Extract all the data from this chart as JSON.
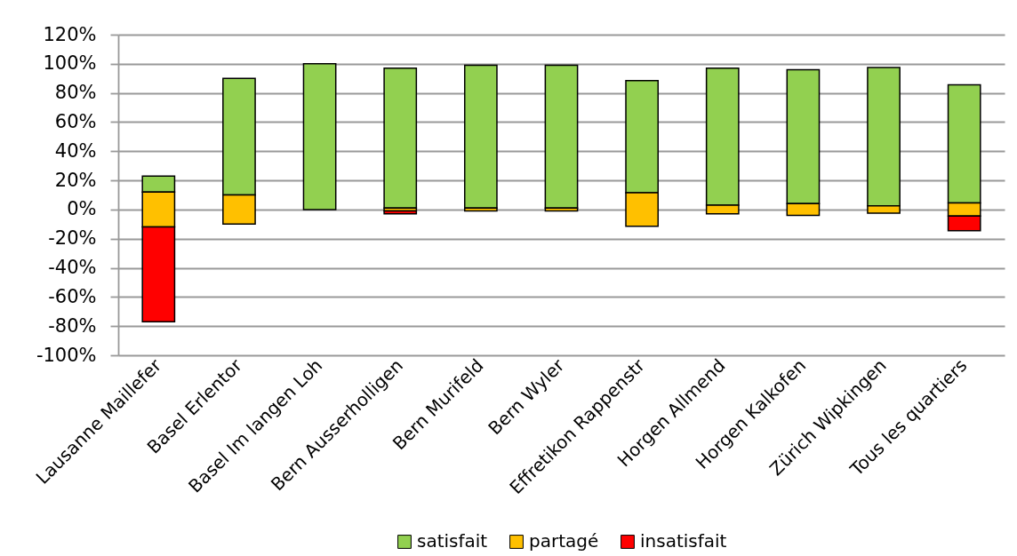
{
  "chart_data": {
    "type": "bar",
    "categories": [
      "Lausanne Maillefer",
      "Basel Erlentor",
      "Basel Im langen Loh",
      "Bern Ausserholligen",
      "Bern Murifeld",
      "Bern Wyler",
      "Effretikon Rappenstr",
      "Horgen Allmend",
      "Horgen Kalkofen",
      "Zürich Wipkingen",
      "Tous les quartiers"
    ],
    "series": [
      {
        "name": "satisfait",
        "color": "#92d050",
        "values": [
          11,
          80,
          100,
          96,
          98,
          98,
          77,
          94,
          92,
          95,
          81
        ],
        "base": [
          12,
          10,
          0,
          1,
          1,
          1,
          11.5,
          3,
          4,
          2.5,
          4.5
        ]
      },
      {
        "name": "partagé",
        "color": "#ffc000",
        "values": [
          24,
          20,
          null,
          2,
          2,
          2,
          23,
          6,
          8,
          5,
          9
        ],
        "base": [
          -12,
          -10,
          null,
          -1,
          -1,
          -1,
          -11.5,
          -3,
          -4,
          -2.5,
          -4.5
        ]
      },
      {
        "name": "insatisfait",
        "color": "#ff0000",
        "values": [
          65,
          null,
          null,
          2,
          null,
          null,
          null,
          null,
          null,
          null,
          10
        ],
        "base": [
          -77,
          null,
          null,
          -3,
          null,
          null,
          null,
          null,
          null,
          null,
          -14.5
        ]
      }
    ],
    "ylim": [
      -100,
      120
    ],
    "yticks": [
      {
        "value": -100,
        "label": "-100%"
      },
      {
        "value": -80,
        "label": "-80%"
      },
      {
        "value": -60,
        "label": "-60%"
      },
      {
        "value": -40,
        "label": "-40%"
      },
      {
        "value": -20,
        "label": "-20%"
      },
      {
        "value": 0,
        "label": "0%"
      },
      {
        "value": 20,
        "label": "20%"
      },
      {
        "value": 40,
        "label": "40%"
      },
      {
        "value": 60,
        "label": "60%"
      },
      {
        "value": 80,
        "label": "80%"
      },
      {
        "value": 100,
        "label": "100%"
      },
      {
        "value": 120,
        "label": "120%"
      }
    ],
    "grid": "y",
    "legend": "bottom"
  }
}
